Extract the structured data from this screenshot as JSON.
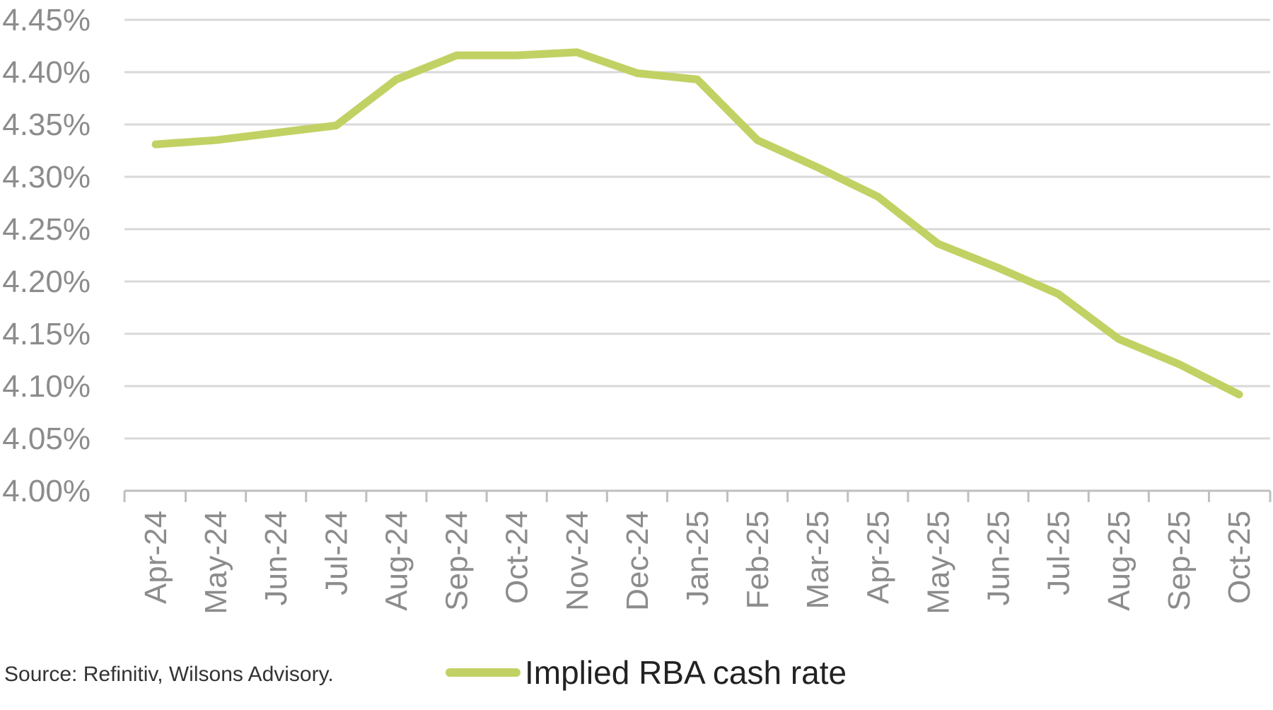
{
  "chart_data": {
    "type": "line",
    "title": "",
    "xlabel": "",
    "ylabel": "",
    "ylim": [
      4.0,
      4.45
    ],
    "yticks": [
      4.0,
      4.05,
      4.1,
      4.15,
      4.2,
      4.25,
      4.3,
      4.35,
      4.4,
      4.45
    ],
    "ytick_labels": [
      "4.00%",
      "4.05%",
      "4.10%",
      "4.15%",
      "4.20%",
      "4.25%",
      "4.30%",
      "4.35%",
      "4.40%",
      "4.45%"
    ],
    "grid": true,
    "legend_position": "bottom-center",
    "categories": [
      "Apr-24",
      "May-24",
      "Jun-24",
      "Jul-24",
      "Aug-24",
      "Sep-24",
      "Oct-24",
      "Nov-24",
      "Dec-24",
      "Jan-25",
      "Feb-25",
      "Mar-25",
      "Apr-25",
      "May-25",
      "Jun-25",
      "Jul-25",
      "Aug-25",
      "Sep-25",
      "Oct-25"
    ],
    "series": [
      {
        "name": "Implied RBA cash rate",
        "color": "#c2d163",
        "values": [
          4.331,
          4.335,
          4.342,
          4.349,
          4.393,
          4.416,
          4.416,
          4.419,
          4.399,
          4.393,
          4.335,
          4.309,
          4.281,
          4.236,
          4.213,
          4.188,
          4.145,
          4.121,
          4.092
        ]
      }
    ]
  },
  "source_note": "Source: Refinitiv, Wilsons Advisory.",
  "legend": {
    "label": "Implied RBA cash rate",
    "color": "#c2d163"
  },
  "colors": {
    "gridline": "#d9d9d9",
    "axis": "#bfbfbf",
    "tick_text": "#8c8c8c"
  }
}
